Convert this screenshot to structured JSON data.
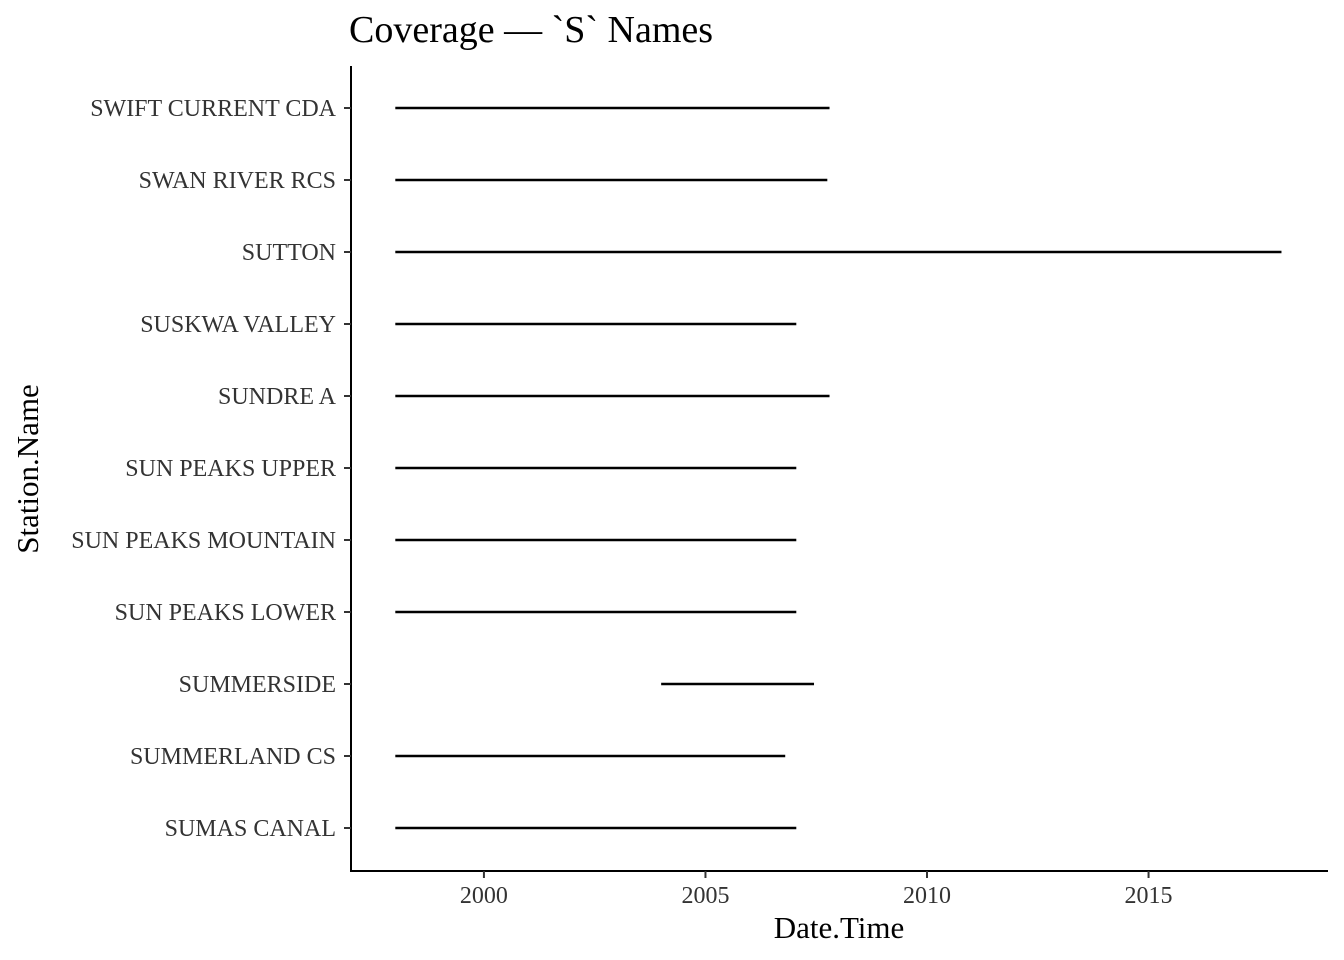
{
  "chart_data": {
    "type": "line",
    "title": "Coverage — `S` Names",
    "xlabel": "Date.Time",
    "ylabel": "Station.Name",
    "x_ticks": [
      2000,
      2005,
      2010,
      2015
    ],
    "xlim": [
      1997.0,
      2019.05
    ],
    "grid": false,
    "legend": "none",
    "categories": [
      "SUMAS CANAL",
      "SUMMERLAND CS",
      "SUMMERSIDE",
      "SUN PEAKS LOWER",
      "SUN PEAKS MOUNTAIN",
      "SUN PEAKS UPPER",
      "SUNDRE A",
      "SUSKWA VALLEY",
      "SUTTON",
      "SWAN RIVER RCS",
      "SWIFT CURRENT CDA"
    ],
    "segments": [
      {
        "station": "SUMAS CANAL",
        "start": 1998.0,
        "end": 2007.05
      },
      {
        "station": "SUMMERLAND CS",
        "start": 1998.0,
        "end": 2006.8
      },
      {
        "station": "SUMMERSIDE",
        "start": 2004.0,
        "end": 2007.45
      },
      {
        "station": "SUN PEAKS LOWER",
        "start": 1998.0,
        "end": 2007.05
      },
      {
        "station": "SUN PEAKS MOUNTAIN",
        "start": 1998.0,
        "end": 2007.05
      },
      {
        "station": "SUN PEAKS UPPER",
        "start": 1998.0,
        "end": 2007.05
      },
      {
        "station": "SUNDRE A",
        "start": 1998.0,
        "end": 2007.8
      },
      {
        "station": "SUSKWA VALLEY",
        "start": 1998.0,
        "end": 2007.05
      },
      {
        "station": "SUTTON",
        "start": 1998.0,
        "end": 2018.0
      },
      {
        "station": "SWAN RIVER RCS",
        "start": 1998.0,
        "end": 2007.75
      },
      {
        "station": "SWIFT CURRENT CDA",
        "start": 1998.0,
        "end": 2007.8
      }
    ]
  }
}
